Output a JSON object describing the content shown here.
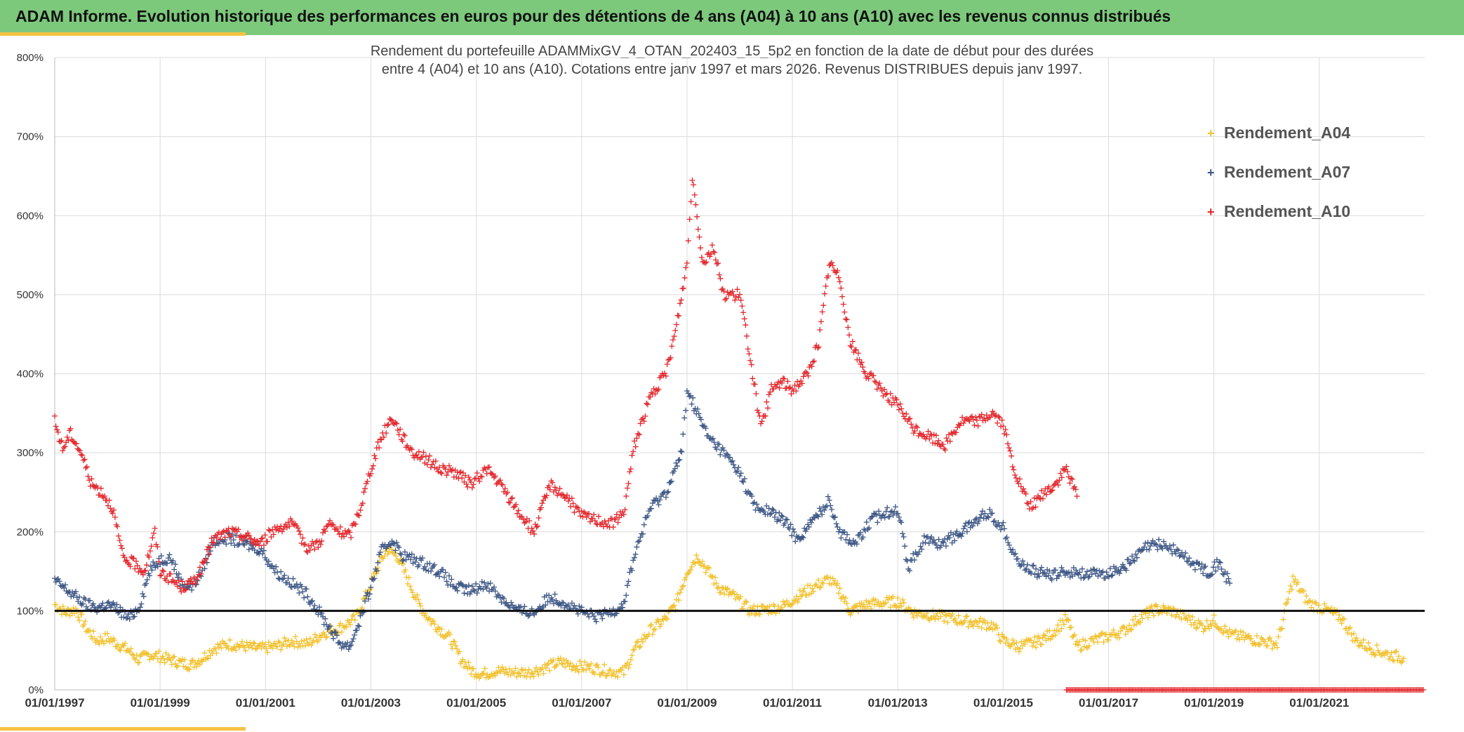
{
  "header": {
    "title": "ADAM Informe. Evolution historique des performances en euros pour des détentions de 4 ans (A04) à 10 ans (A10) avec les revenus connus distribués"
  },
  "colors": {
    "banner": "#7dc97c",
    "accent": "#f5c342",
    "a04": "#f2c12e",
    "a07": "#3b5584",
    "a10": "#e3262b",
    "reference": "#111111"
  },
  "chart_data": {
    "type": "scatter",
    "subtitle_line1": "Rendement du portefeuille ADAMMixGV_4_OTAN_202403_15_5p2  en fonction de la date de début pour des durées",
    "subtitle_line2": "entre 4 (A04) et 10 ans (A10). Cotations entre janv 1997 et mars 2026. Revenus DISTRIBUES depuis janv 1997.",
    "xlim": [
      1997.0,
      2023.0
    ],
    "ylim": [
      0,
      800
    ],
    "y_ticks": [
      "0%",
      "100%",
      "200%",
      "300%",
      "400%",
      "500%",
      "600%",
      "700%",
      "800%"
    ],
    "x_ticks": [
      "01/01/1997",
      "01/01/1999",
      "01/01/2001",
      "01/01/2003",
      "01/01/2005",
      "01/01/2007",
      "01/01/2009",
      "01/01/2011",
      "01/01/2013",
      "01/01/2015",
      "01/01/2017",
      "01/01/2019",
      "01/01/2021"
    ],
    "grid": true,
    "reference_line": 100,
    "legend_position": "top-right",
    "series": [
      {
        "name": "Rendement_A04",
        "points": [
          [
            1997.0,
            108
          ],
          [
            1997.2,
            98
          ],
          [
            1997.4,
            102
          ],
          [
            1997.6,
            78
          ],
          [
            1997.8,
            62
          ],
          [
            1998.0,
            66
          ],
          [
            1998.2,
            58
          ],
          [
            1998.4,
            50
          ],
          [
            1998.6,
            38
          ],
          [
            1998.8,
            45
          ],
          [
            1999.0,
            42
          ],
          [
            1999.2,
            38
          ],
          [
            1999.4,
            34
          ],
          [
            1999.6,
            32
          ],
          [
            1999.8,
            40
          ],
          [
            2000.0,
            52
          ],
          [
            2000.3,
            58
          ],
          [
            2000.6,
            55
          ],
          [
            2000.9,
            52
          ],
          [
            2001.2,
            55
          ],
          [
            2001.5,
            62
          ],
          [
            2001.8,
            58
          ],
          [
            2002.1,
            72
          ],
          [
            2002.4,
            78
          ],
          [
            2002.7,
            90
          ],
          [
            2002.9,
            118
          ],
          [
            2003.1,
            150
          ],
          [
            2003.3,
            178
          ],
          [
            2003.5,
            170
          ],
          [
            2003.7,
            140
          ],
          [
            2003.9,
            110
          ],
          [
            2004.1,
            90
          ],
          [
            2004.3,
            78
          ],
          [
            2004.5,
            65
          ],
          [
            2004.7,
            40
          ],
          [
            2004.9,
            25
          ],
          [
            2005.1,
            20
          ],
          [
            2005.4,
            24
          ],
          [
            2005.7,
            22
          ],
          [
            2006.0,
            22
          ],
          [
            2006.3,
            28
          ],
          [
            2006.6,
            35
          ],
          [
            2006.9,
            30
          ],
          [
            2007.2,
            28
          ],
          [
            2007.5,
            24
          ],
          [
            2007.8,
            22
          ],
          [
            2008.0,
            50
          ],
          [
            2008.3,
            75
          ],
          [
            2008.6,
            90
          ],
          [
            2008.8,
            110
          ],
          [
            2009.0,
            150
          ],
          [
            2009.2,
            170
          ],
          [
            2009.4,
            150
          ],
          [
            2009.6,
            130
          ],
          [
            2009.9,
            118
          ],
          [
            2010.2,
            100
          ],
          [
            2010.5,
            102
          ],
          [
            2010.8,
            105
          ],
          [
            2011.1,
            118
          ],
          [
            2011.4,
            130
          ],
          [
            2011.7,
            140
          ],
          [
            2011.9,
            125
          ],
          [
            2012.1,
            100
          ],
          [
            2012.4,
            108
          ],
          [
            2012.7,
            110
          ],
          [
            2013.0,
            112
          ],
          [
            2013.3,
            98
          ],
          [
            2013.6,
            95
          ],
          [
            2013.9,
            92
          ],
          [
            2014.2,
            88
          ],
          [
            2014.5,
            85
          ],
          [
            2014.8,
            82
          ],
          [
            2015.0,
            62
          ],
          [
            2015.3,
            55
          ],
          [
            2015.6,
            60
          ],
          [
            2015.9,
            70
          ],
          [
            2016.2,
            90
          ],
          [
            2016.4,
            55
          ],
          [
            2016.7,
            62
          ],
          [
            2017.0,
            68
          ],
          [
            2017.3,
            75
          ],
          [
            2017.6,
            92
          ],
          [
            2017.9,
            102
          ],
          [
            2018.2,
            100
          ],
          [
            2018.5,
            90
          ],
          [
            2018.8,
            80
          ],
          [
            2019.0,
            88
          ],
          [
            2019.3,
            70
          ],
          [
            2019.6,
            66
          ],
          [
            2019.9,
            62
          ],
          [
            2020.2,
            58
          ],
          [
            2020.5,
            140
          ],
          [
            2020.8,
            110
          ],
          [
            2021.1,
            102
          ],
          [
            2021.4,
            92
          ],
          [
            2021.7,
            62
          ],
          [
            2022.0,
            52
          ],
          [
            2022.3,
            45
          ],
          [
            2022.6,
            40
          ]
        ]
      },
      {
        "name": "Rendement_A07",
        "points": [
          [
            1997.0,
            138
          ],
          [
            1997.2,
            128
          ],
          [
            1997.4,
            118
          ],
          [
            1997.6,
            108
          ],
          [
            1997.8,
            104
          ],
          [
            1998.0,
            108
          ],
          [
            1998.2,
            102
          ],
          [
            1998.4,
            90
          ],
          [
            1998.6,
            105
          ],
          [
            1998.8,
            150
          ],
          [
            1999.0,
            165
          ],
          [
            1999.2,
            168
          ],
          [
            1999.4,
            135
          ],
          [
            1999.6,
            130
          ],
          [
            1999.8,
            150
          ],
          [
            2000.0,
            188
          ],
          [
            2000.3,
            192
          ],
          [
            2000.6,
            185
          ],
          [
            2000.9,
            178
          ],
          [
            2001.2,
            150
          ],
          [
            2001.5,
            135
          ],
          [
            2001.8,
            120
          ],
          [
            2002.0,
            100
          ],
          [
            2002.2,
            80
          ],
          [
            2002.4,
            60
          ],
          [
            2002.6,
            55
          ],
          [
            2002.8,
            90
          ],
          [
            2003.0,
            130
          ],
          [
            2003.2,
            175
          ],
          [
            2003.4,
            190
          ],
          [
            2003.6,
            170
          ],
          [
            2003.8,
            165
          ],
          [
            2004.0,
            160
          ],
          [
            2004.3,
            150
          ],
          [
            2004.6,
            130
          ],
          [
            2004.9,
            125
          ],
          [
            2005.2,
            135
          ],
          [
            2005.5,
            115
          ],
          [
            2005.8,
            100
          ],
          [
            2006.1,
            98
          ],
          [
            2006.4,
            118
          ],
          [
            2006.7,
            110
          ],
          [
            2007.0,
            98
          ],
          [
            2007.3,
            92
          ],
          [
            2007.6,
            100
          ],
          [
            2007.8,
            110
          ],
          [
            2008.0,
            170
          ],
          [
            2008.3,
            230
          ],
          [
            2008.6,
            250
          ],
          [
            2008.9,
            300
          ],
          [
            2009.0,
            380
          ],
          [
            2009.2,
            350
          ],
          [
            2009.4,
            320
          ],
          [
            2009.7,
            300
          ],
          [
            2010.0,
            275
          ],
          [
            2010.3,
            230
          ],
          [
            2010.6,
            225
          ],
          [
            2010.9,
            210
          ],
          [
            2011.1,
            190
          ],
          [
            2011.4,
            215
          ],
          [
            2011.7,
            240
          ],
          [
            2011.9,
            200
          ],
          [
            2012.2,
            185
          ],
          [
            2012.5,
            215
          ],
          [
            2012.8,
            225
          ],
          [
            2013.0,
            230
          ],
          [
            2013.2,
            155
          ],
          [
            2013.5,
            190
          ],
          [
            2013.8,
            185
          ],
          [
            2014.1,
            195
          ],
          [
            2014.4,
            210
          ],
          [
            2014.7,
            225
          ],
          [
            2015.0,
            205
          ],
          [
            2015.3,
            160
          ],
          [
            2015.6,
            150
          ],
          [
            2015.9,
            145
          ],
          [
            2016.2,
            150
          ],
          [
            2016.5,
            148
          ],
          [
            2016.8,
            145
          ],
          [
            2017.1,
            150
          ],
          [
            2017.4,
            160
          ],
          [
            2017.7,
            180
          ],
          [
            2018.0,
            185
          ],
          [
            2018.3,
            175
          ],
          [
            2018.6,
            160
          ],
          [
            2018.9,
            150
          ],
          [
            2019.1,
            160
          ],
          [
            2019.3,
            135
          ]
        ]
      },
      {
        "name": "Rendement_A10",
        "points": [
          [
            1997.0,
            340
          ],
          [
            1997.15,
            305
          ],
          [
            1997.3,
            325
          ],
          [
            1997.5,
            300
          ],
          [
            1997.7,
            260
          ],
          [
            1997.9,
            250
          ],
          [
            1998.1,
            230
          ],
          [
            1998.3,
            165
          ],
          [
            1998.5,
            160
          ],
          [
            1998.7,
            150
          ],
          [
            1998.9,
            200
          ],
          [
            1999.0,
            150
          ],
          [
            1999.2,
            140
          ],
          [
            1999.4,
            130
          ],
          [
            1999.6,
            135
          ],
          [
            1999.8,
            155
          ],
          [
            2000.0,
            190
          ],
          [
            2000.3,
            200
          ],
          [
            2000.6,
            195
          ],
          [
            2000.9,
            185
          ],
          [
            2001.2,
            205
          ],
          [
            2001.5,
            210
          ],
          [
            2001.8,
            180
          ],
          [
            2002.0,
            185
          ],
          [
            2002.2,
            210
          ],
          [
            2002.4,
            200
          ],
          [
            2002.6,
            195
          ],
          [
            2002.8,
            230
          ],
          [
            2003.0,
            280
          ],
          [
            2003.2,
            320
          ],
          [
            2003.4,
            345
          ],
          [
            2003.6,
            320
          ],
          [
            2003.8,
            300
          ],
          [
            2004.0,
            295
          ],
          [
            2004.3,
            280
          ],
          [
            2004.6,
            275
          ],
          [
            2004.9,
            260
          ],
          [
            2005.2,
            280
          ],
          [
            2005.5,
            255
          ],
          [
            2005.8,
            225
          ],
          [
            2006.1,
            200
          ],
          [
            2006.4,
            260
          ],
          [
            2006.7,
            245
          ],
          [
            2007.0,
            220
          ],
          [
            2007.3,
            215
          ],
          [
            2007.6,
            210
          ],
          [
            2007.8,
            225
          ],
          [
            2008.0,
            310
          ],
          [
            2008.3,
            370
          ],
          [
            2008.6,
            400
          ],
          [
            2008.8,
            460
          ],
          [
            2009.0,
            540
          ],
          [
            2009.1,
            650
          ],
          [
            2009.3,
            540
          ],
          [
            2009.5,
            560
          ],
          [
            2009.7,
            500
          ],
          [
            2010.0,
            500
          ],
          [
            2010.2,
            420
          ],
          [
            2010.4,
            330
          ],
          [
            2010.6,
            380
          ],
          [
            2010.8,
            390
          ],
          [
            2011.0,
            380
          ],
          [
            2011.3,
            400
          ],
          [
            2011.5,
            440
          ],
          [
            2011.7,
            540
          ],
          [
            2011.9,
            520
          ],
          [
            2012.1,
            440
          ],
          [
            2012.4,
            400
          ],
          [
            2012.7,
            380
          ],
          [
            2013.0,
            360
          ],
          [
            2013.3,
            330
          ],
          [
            2013.6,
            320
          ],
          [
            2013.9,
            310
          ],
          [
            2014.2,
            340
          ],
          [
            2014.5,
            340
          ],
          [
            2014.8,
            350
          ],
          [
            2015.0,
            335
          ],
          [
            2015.2,
            280
          ],
          [
            2015.5,
            230
          ],
          [
            2015.8,
            250
          ],
          [
            2016.0,
            260
          ],
          [
            2016.2,
            280
          ],
          [
            2016.4,
            245
          ]
        ]
      }
    ]
  }
}
